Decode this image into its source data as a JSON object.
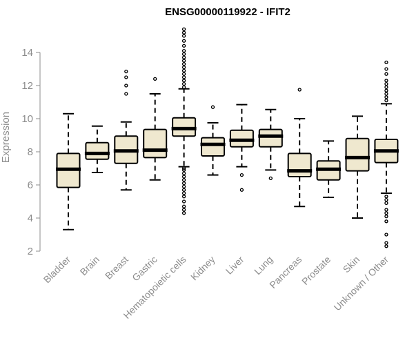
{
  "colors": {
    "box_fill": "#efe8cf",
    "box_stroke": "#000000",
    "axis": "#8c8c8c",
    "text_muted": "#8c8c8c",
    "title": "#000000"
  },
  "chart_data": {
    "type": "boxplot",
    "title": "ENSG00000119922 - IFIT2",
    "xlabel": "",
    "ylabel": "Expression",
    "ylim": [
      2,
      15.5
    ],
    "yticks": [
      2,
      4,
      6,
      8,
      10,
      12,
      14
    ],
    "categories": [
      "Bladder",
      "Brain",
      "Breast",
      "Gastric",
      "Hematopoietic cells",
      "Kidney",
      "Liver",
      "Lung",
      "Pancreas",
      "Prostate",
      "Skin",
      "Unknown / Other"
    ],
    "boxes": [
      {
        "name": "Bladder",
        "whisker_low": 3.3,
        "q1": 5.85,
        "median": 6.95,
        "q3": 7.9,
        "whisker_high": 10.3,
        "outliers": []
      },
      {
        "name": "Brain",
        "whisker_low": 6.75,
        "q1": 7.55,
        "median": 7.9,
        "q3": 8.55,
        "whisker_high": 9.55,
        "outliers": []
      },
      {
        "name": "Breast",
        "whisker_low": 5.7,
        "q1": 7.3,
        "median": 8.05,
        "q3": 8.95,
        "whisker_high": 9.8,
        "outliers": [
          11.5,
          12.0,
          12.5,
          12.85
        ]
      },
      {
        "name": "Gastric",
        "whisker_low": 6.3,
        "q1": 7.65,
        "median": 8.1,
        "q3": 9.35,
        "whisker_high": 11.5,
        "outliers": [
          12.4
        ]
      },
      {
        "name": "Hematopoietic cells",
        "whisker_low": 7.1,
        "q1": 8.95,
        "median": 9.4,
        "q3": 10.05,
        "whisker_high": 11.8,
        "outliers": [
          4.3,
          4.5,
          4.7,
          5.0,
          5.3,
          5.5,
          5.7,
          5.9,
          6.1,
          6.3,
          6.5,
          6.7,
          6.9,
          7.0,
          11.9,
          12.1,
          12.3,
          12.5,
          12.7,
          12.9,
          13.1,
          13.3,
          13.5,
          13.7,
          13.9,
          14.1,
          14.4,
          14.7,
          15.0,
          15.2,
          15.4
        ]
      },
      {
        "name": "Kidney",
        "whisker_low": 6.6,
        "q1": 7.75,
        "median": 8.45,
        "q3": 8.85,
        "whisker_high": 9.75,
        "outliers": [
          10.7
        ]
      },
      {
        "name": "Liver",
        "whisker_low": 7.1,
        "q1": 8.3,
        "median": 8.7,
        "q3": 9.3,
        "whisker_high": 10.85,
        "outliers": [
          5.7,
          6.6
        ]
      },
      {
        "name": "Lung",
        "whisker_low": 6.9,
        "q1": 8.3,
        "median": 8.95,
        "q3": 9.35,
        "whisker_high": 10.55,
        "outliers": [
          6.4
        ]
      },
      {
        "name": "Pancreas",
        "whisker_low": 4.7,
        "q1": 6.5,
        "median": 6.85,
        "q3": 7.9,
        "whisker_high": 10.0,
        "outliers": [
          11.75
        ]
      },
      {
        "name": "Prostate",
        "whisker_low": 5.25,
        "q1": 6.3,
        "median": 6.95,
        "q3": 7.45,
        "whisker_high": 8.65,
        "outliers": []
      },
      {
        "name": "Skin",
        "whisker_low": 4.0,
        "q1": 6.85,
        "median": 7.65,
        "q3": 8.8,
        "whisker_high": 10.15,
        "outliers": []
      },
      {
        "name": "Unknown / Other",
        "whisker_low": 5.5,
        "q1": 7.35,
        "median": 8.05,
        "q3": 8.75,
        "whisker_high": 10.9,
        "outliers": [
          2.3,
          2.5,
          3.0,
          3.8,
          4.1,
          4.3,
          4.5,
          4.9,
          5.1,
          5.3,
          11.1,
          11.3,
          11.5,
          11.7,
          11.9,
          12.1,
          12.3,
          12.7,
          13.0,
          13.4
        ]
      }
    ]
  }
}
